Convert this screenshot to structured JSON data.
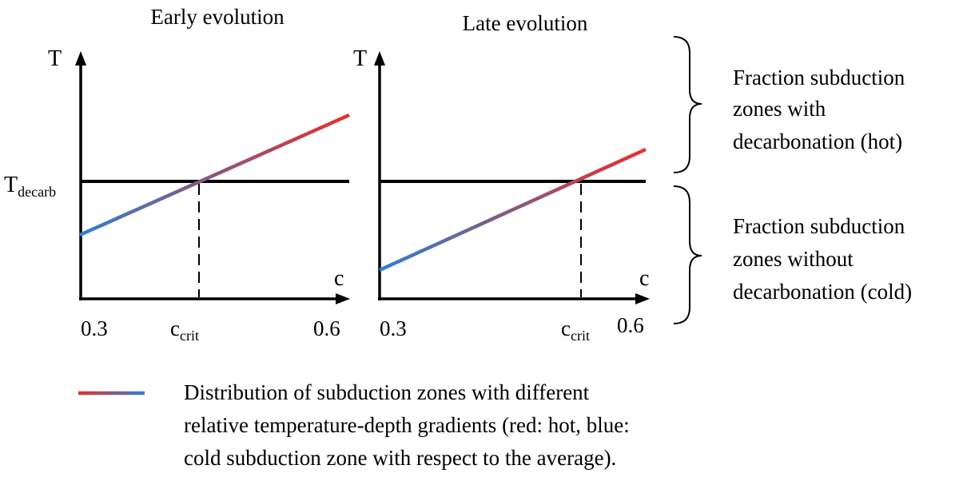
{
  "panels": [
    {
      "title": "Early evolution",
      "y_axis_label": "T",
      "x_axis_label": "c",
      "x_min_label": "0.3",
      "x_max_label": "0.6",
      "ccrit_base": "c",
      "ccrit_sub": "crit",
      "tdecarb_base": "T",
      "tdecarb_sub": "decarb",
      "line": {
        "x_start": 0.3,
        "x_end": 0.6,
        "crosses_threshold_at": "c_crit"
      }
    },
    {
      "title": "Late evolution",
      "y_axis_label": "T",
      "x_axis_label": "c",
      "x_min_label": "0.3",
      "x_max_label": "0.6",
      "ccrit_base": "c",
      "ccrit_sub": "crit",
      "line": {
        "x_start": 0.3,
        "x_end": 0.6,
        "crosses_threshold_at": "c_crit"
      }
    }
  ],
  "bracket_hot": {
    "lines": [
      "Fraction subduction",
      "zones with",
      "decarbonation (hot)"
    ]
  },
  "bracket_cold": {
    "lines": [
      "Fraction subduction",
      "zones without",
      "decarbonation (cold)"
    ]
  },
  "legend": {
    "lines": [
      "Distribution of subduction zones with different",
      "relative temperature-depth gradients (red: hot, blue:",
      "cold subduction zone with respect to the average)."
    ]
  },
  "colors": {
    "hot": "#e8302a",
    "cold": "#2f7fd0",
    "axis": "#000000"
  }
}
